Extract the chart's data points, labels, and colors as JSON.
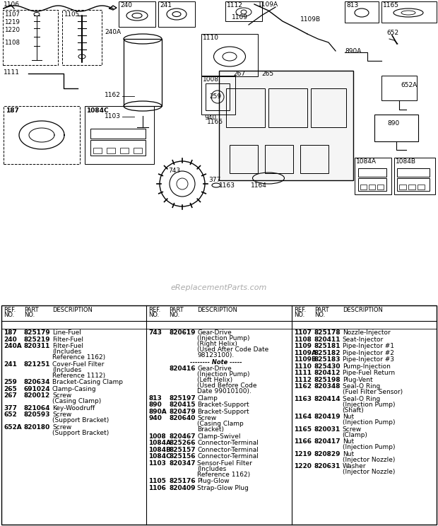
{
  "watermark": "eReplacementParts.com",
  "bg_color": "#ffffff",
  "col1_data": [
    [
      "187",
      "825179",
      "Line-Fuel"
    ],
    [
      "240",
      "825219",
      "Filter-Fuel"
    ],
    [
      "240A",
      "820311",
      "Filter-Fuel\n(Includes\nReference 1162)"
    ],
    [
      "241",
      "821251",
      "Cover-Fuel Filter\n(Includes\nReference 1112)"
    ],
    [
      "259",
      "820634",
      "Bracket-Casing Clamp"
    ],
    [
      "265",
      "691024",
      "Clamp-Casing"
    ],
    [
      "267",
      "820012",
      "Screw\n(Casing Clamp)"
    ],
    [
      "377",
      "821064",
      "Key-Woodruff"
    ],
    [
      "652",
      "820593",
      "Screw\n(Support Bracket)"
    ],
    [
      "652A",
      "820180",
      "Screw\n(Support Bracket)"
    ]
  ],
  "col2_data": [
    [
      "743",
      "820619",
      "Gear-Drive\n(Injection Pump)\n(Right Helix)\n(Used After Code Date\n98123100)."
    ],
    [
      "NOTE",
      "",
      "-------- Note -----"
    ],
    [
      "",
      "820416",
      "Gear-Drive\n(Injection Pump)\n(Left Helix)\n(Used Before Code\nDate 99010100)."
    ],
    [
      "813",
      "825197",
      "Clamp"
    ],
    [
      "890",
      "820415",
      "Bracket-Support"
    ],
    [
      "890A",
      "820479",
      "Bracket-Support"
    ],
    [
      "940",
      "820640",
      "Screw\n(Casing Clamp\nBracket)"
    ],
    [
      "1008",
      "820467",
      "Clamp-Swivel"
    ],
    [
      "1084A",
      "825266",
      "Connector-Terminal"
    ],
    [
      "1084B",
      "825157",
      "Connector-Terminal"
    ],
    [
      "1084C",
      "825156",
      "Connector-Terminal"
    ],
    [
      "1103",
      "820347",
      "Sensor-Fuel Filter\n(Includes\nReference 1162)"
    ],
    [
      "1105",
      "825176",
      "Plug-Glow"
    ],
    [
      "1106",
      "820409",
      "Strap-Glow Plug"
    ]
  ],
  "col3_data": [
    [
      "1107",
      "825178",
      "Nozzle-Injector"
    ],
    [
      "1108",
      "820411",
      "Seat-Injector"
    ],
    [
      "1109",
      "825181",
      "Pipe-Injector #1"
    ],
    [
      "1109A",
      "825182",
      "Pipe-Injector #2"
    ],
    [
      "1109B",
      "825183",
      "Pipe-Injector #3"
    ],
    [
      "1110",
      "825430",
      "Pump-Injection"
    ],
    [
      "1111",
      "820412",
      "Pipe-Fuel Return"
    ],
    [
      "1112",
      "825198",
      "Plug-Vent"
    ],
    [
      "1162",
      "820348",
      "Seal-O Ring\n(Fuel Filter Sensor)"
    ],
    [
      "1163",
      "820414",
      "Seal-O Ring\n(Injection Pump)\n(Shaft)"
    ],
    [
      "1164",
      "820419",
      "Nut\n(Injection Pump)"
    ],
    [
      "1165",
      "820031",
      "Screw\n(Clamp)"
    ],
    [
      "1166",
      "820417",
      "Nut\n(Injection Pump)"
    ],
    [
      "1219",
      "820829",
      "Nut\n(Injector Nozzle)"
    ],
    [
      "1220",
      "820631",
      "Washer\n(Injector Nozzle)"
    ]
  ]
}
